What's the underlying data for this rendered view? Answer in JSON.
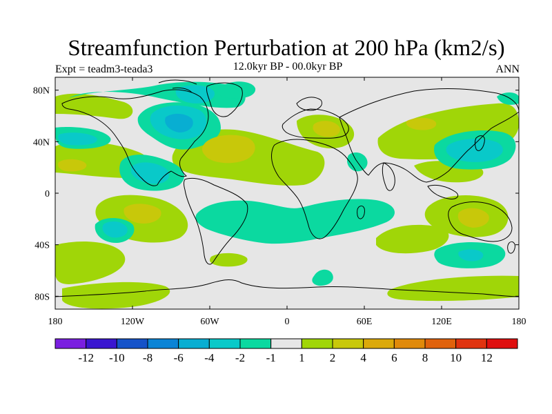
{
  "title": "Streamfunction Perturbation at 200 hPa (km2/s)",
  "left_label": "Expt = teadm3-teada3",
  "center_label": "12.0kyr BP - 00.0kyr BP",
  "right_label": "ANN",
  "colors": {
    "land_background": "#e6e6e6",
    "coast": "#000000",
    "bins": [
      "#7a1fe0",
      "#3a16d0",
      "#1553c9",
      "#0a84d6",
      "#08aed2",
      "#09c9c9",
      "#0bd9a0",
      "#e6e6e6",
      "#a0d608",
      "#c8c80a",
      "#dba90a",
      "#e08a0a",
      "#e0620c",
      "#e0330f",
      "#df0f0f"
    ]
  },
  "axes": {
    "lon_ticks": [
      "180",
      "120W",
      "60W",
      "0",
      "60E",
      "120E",
      "180"
    ],
    "lat_ticks": [
      "80N",
      "40N",
      "0",
      "40S",
      "80S"
    ]
  },
  "colorbar": {
    "levels": [
      "-12",
      "-10",
      "-8",
      "-6",
      "-4",
      "-2",
      "-1",
      "1",
      "2",
      "4",
      "6",
      "8",
      "10",
      "12"
    ]
  },
  "chart_data": {
    "type": "heatmap",
    "title": "Streamfunction Perturbation at 200 hPa (km2/s)",
    "subtitle": "12.0kyr BP - 00.0kyr BP",
    "units": "km2/s",
    "projection": "cylindrical equidistant",
    "lon_range": [
      -180,
      180
    ],
    "lat_range": [
      -90,
      90
    ],
    "contour_levels": [
      -12,
      -10,
      -8,
      -6,
      -4,
      -2,
      -1,
      1,
      2,
      4,
      6,
      8,
      10,
      12
    ],
    "anomaly_features": [
      {
        "name": "north-america-low",
        "lon": -95,
        "lat": 55,
        "value": -5
      },
      {
        "name": "labrador-low",
        "lon": -70,
        "lat": 62,
        "value": -4
      },
      {
        "name": "arctic-canada-low",
        "lon": -105,
        "lat": 72,
        "value": -3
      },
      {
        "name": "caribbean-low",
        "lon": -110,
        "lat": 20,
        "value": -4
      },
      {
        "name": "east-pacific-low",
        "lon": -160,
        "lat": 40,
        "value": -2
      },
      {
        "name": "north-atlantic-high",
        "lon": -40,
        "lat": 38,
        "value": 4
      },
      {
        "name": "africa-high",
        "lon": 25,
        "lat": 20,
        "value": 2
      },
      {
        "name": "mediterranean-high",
        "lon": 30,
        "lat": 45,
        "value": 3
      },
      {
        "name": "arabia-low",
        "lon": 55,
        "lat": 25,
        "value": -2
      },
      {
        "name": "japan-low",
        "lon": 140,
        "lat": 40,
        "value": -4
      },
      {
        "name": "north-pacific-high",
        "lon": 150,
        "lat": 55,
        "value": 2
      },
      {
        "name": "asia-high",
        "lon": 110,
        "lat": 60,
        "value": 2
      },
      {
        "name": "south-pacific-high",
        "lon": -140,
        "lat": -20,
        "value": 3
      },
      {
        "name": "south-pacific-low",
        "lon": -150,
        "lat": -30,
        "value": -3
      },
      {
        "name": "south-atlantic-low",
        "lon": -10,
        "lat": -25,
        "value": -2
      },
      {
        "name": "indian-ocean-low",
        "lon": 70,
        "lat": -15,
        "value": -2
      },
      {
        "name": "australia-high",
        "lon": 140,
        "lat": -20,
        "value": 3
      },
      {
        "name": "southern-ocean-low",
        "lon": 140,
        "lat": -50,
        "value": -3
      },
      {
        "name": "southern-ocean-high",
        "lon": 170,
        "lat": -70,
        "value": 2
      },
      {
        "name": "south-pacific-high-2",
        "lon": -160,
        "lat": -75,
        "value": 2
      }
    ]
  }
}
